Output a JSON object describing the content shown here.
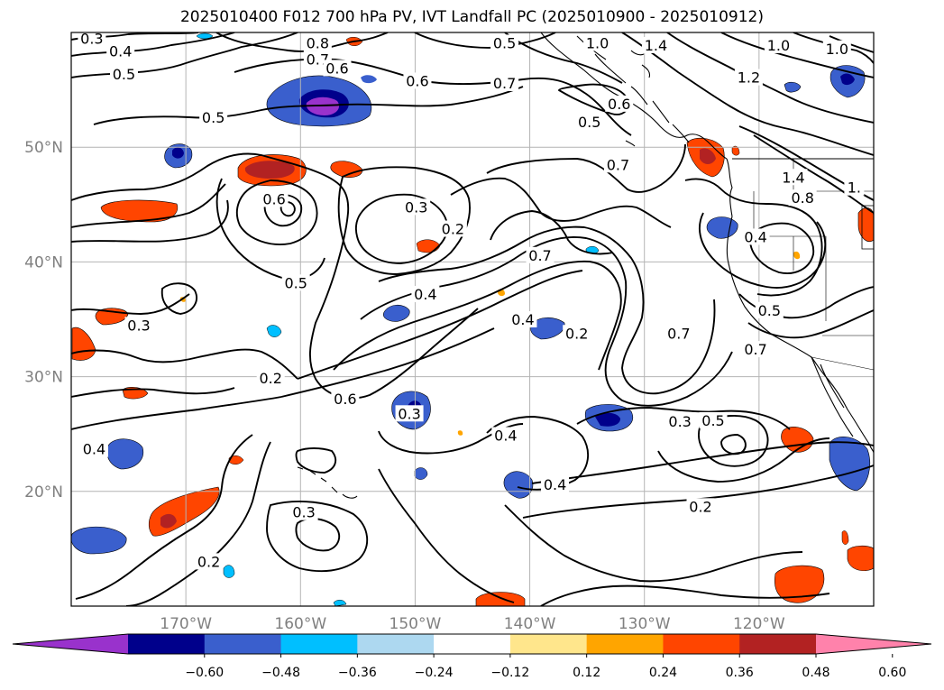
{
  "title": "2025010400 F012 700 hPa PV, IVT Landfall PC (2025010900 - 2025010912)",
  "map": {
    "projection": "PlateCarree",
    "lon_range": [
      -180,
      -110
    ],
    "lat_range": [
      10,
      60
    ],
    "gridlines": true,
    "lat_ticks": [
      {
        "value": 50,
        "label": "50°N"
      },
      {
        "value": 40,
        "label": "40°N"
      },
      {
        "value": 30,
        "label": "30°N"
      },
      {
        "value": 20,
        "label": "20°N"
      }
    ],
    "lon_ticks": [
      {
        "value": -170,
        "label": "170°W"
      },
      {
        "value": -160,
        "label": "160°W"
      },
      {
        "value": -150,
        "label": "150°W"
      },
      {
        "value": -140,
        "label": "140°W"
      },
      {
        "value": -130,
        "label": "130°W"
      },
      {
        "value": -120,
        "label": "120°W"
      }
    ],
    "tick_label_color": "#808080"
  },
  "contours": {
    "variable": "700 hPa PV",
    "color": "#000000",
    "labels": [
      {
        "text": "0.3",
        "lon": -178.2,
        "lat": 59.5
      },
      {
        "text": "0.4",
        "lon": -175.7,
        "lat": 58.4
      },
      {
        "text": "0.5",
        "lon": -175.4,
        "lat": 56.4
      },
      {
        "text": "0.8",
        "lon": -158.5,
        "lat": 59.1
      },
      {
        "text": "0.7",
        "lon": -158.5,
        "lat": 57.7
      },
      {
        "text": "0.6",
        "lon": -156.8,
        "lat": 56.9
      },
      {
        "text": "0.6",
        "lon": -149.8,
        "lat": 55.8
      },
      {
        "text": "0.5",
        "lon": -142.2,
        "lat": 59.1
      },
      {
        "text": "0.7",
        "lon": -142.2,
        "lat": 55.6
      },
      {
        "text": "0.5",
        "lon": -167.6,
        "lat": 52.6
      },
      {
        "text": "0.5",
        "lon": -134.8,
        "lat": 52.2
      },
      {
        "text": "1.0",
        "lon": -134.1,
        "lat": 59.1
      },
      {
        "text": "1.4",
        "lon": -129.0,
        "lat": 58.9
      },
      {
        "text": "0.6",
        "lon": -132.2,
        "lat": 53.8
      },
      {
        "text": "1.0",
        "lon": -118.3,
        "lat": 58.9
      },
      {
        "text": "1.2",
        "lon": -120.9,
        "lat": 56.1
      },
      {
        "text": "1.0",
        "lon": -113.2,
        "lat": 58.6
      },
      {
        "text": "0.7",
        "lon": -132.3,
        "lat": 48.5
      },
      {
        "text": "1.4",
        "lon": -117.0,
        "lat": 47.4
      },
      {
        "text": "0.8",
        "lon": -116.2,
        "lat": 45.6
      },
      {
        "text": "1.",
        "lon": -111.7,
        "lat": 46.5
      },
      {
        "text": "0.6",
        "lon": -162.3,
        "lat": 45.5
      },
      {
        "text": "0.3",
        "lon": -149.9,
        "lat": 44.8
      },
      {
        "text": "0.2",
        "lon": -146.7,
        "lat": 42.9
      },
      {
        "text": "0.4",
        "lon": -120.3,
        "lat": 42.2
      },
      {
        "text": "0.5",
        "lon": -160.4,
        "lat": 38.2
      },
      {
        "text": "0.7",
        "lon": -139.1,
        "lat": 40.6
      },
      {
        "text": "0.4",
        "lon": -149.1,
        "lat": 37.2
      },
      {
        "text": "0.4",
        "lon": -140.6,
        "lat": 35.0
      },
      {
        "text": "0.2",
        "lon": -135.9,
        "lat": 33.8
      },
      {
        "text": "0.7",
        "lon": -127.0,
        "lat": 33.8
      },
      {
        "text": "0.5",
        "lon": -119.1,
        "lat": 35.8
      },
      {
        "text": "0.7",
        "lon": -120.3,
        "lat": 32.4
      },
      {
        "text": "0.3",
        "lon": -174.1,
        "lat": 34.5
      },
      {
        "text": "0.2",
        "lon": -162.6,
        "lat": 29.9
      },
      {
        "text": "0.6",
        "lon": -156.1,
        "lat": 28.1
      },
      {
        "text": "0.3",
        "lon": -150.5,
        "lat": 26.8
      },
      {
        "text": "0.4",
        "lon": -178.0,
        "lat": 23.7
      },
      {
        "text": "0.4",
        "lon": -142.1,
        "lat": 24.9
      },
      {
        "text": "0.3",
        "lon": -126.9,
        "lat": 26.1
      },
      {
        "text": "0.5",
        "lon": -124.0,
        "lat": 26.2
      },
      {
        "text": "0.3",
        "lon": -159.7,
        "lat": 18.2
      },
      {
        "text": "0.4",
        "lon": -137.8,
        "lat": 20.6
      },
      {
        "text": "0.2",
        "lon": -125.1,
        "lat": 18.7
      },
      {
        "text": "0.2",
        "lon": -168.0,
        "lat": 13.9
      }
    ]
  },
  "colorbar": {
    "variable": "IVT Landfall PC",
    "extend": "both",
    "tick_labels": [
      "−0.60",
      "−0.48",
      "−0.36",
      "−0.24",
      "−0.12",
      "0.12",
      "0.24",
      "0.36",
      "0.48",
      "0.60"
    ],
    "colors": [
      "#9932cc",
      "#00008b",
      "#3a5fcd",
      "#00bfff",
      "#add8f0",
      "#ffffff",
      "#ffe68c",
      "#ffa500",
      "#ff4500",
      "#b22222",
      "#ff82ab"
    ]
  }
}
